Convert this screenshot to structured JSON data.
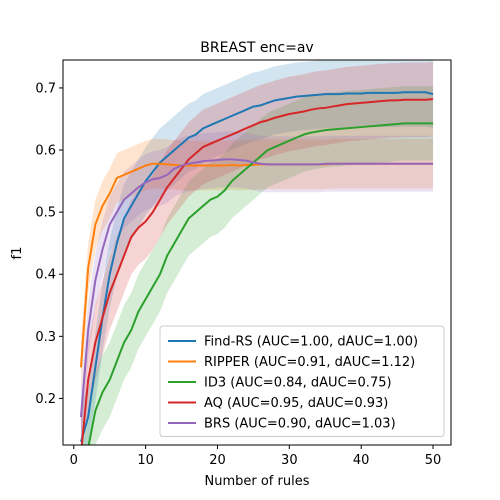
{
  "chart_data": {
    "type": "line",
    "title": "BREAST enc=av",
    "xlabel": "Number of rules",
    "ylabel": "f1",
    "xlim": [
      -1.5,
      52.5
    ],
    "ylim": [
      0.125,
      0.745
    ],
    "xticks": [
      0,
      10,
      20,
      30,
      40,
      50
    ],
    "yticks": [
      0.2,
      0.3,
      0.4,
      0.5,
      0.6,
      0.7
    ],
    "grid": false,
    "legend_position": "lower-right",
    "x": [
      1,
      2,
      3,
      4,
      5,
      6,
      7,
      8,
      9,
      10,
      11,
      12,
      13,
      14,
      15,
      16,
      17,
      18,
      19,
      20,
      21,
      22,
      23,
      24,
      25,
      26,
      27,
      28,
      29,
      30,
      31,
      32,
      33,
      34,
      35,
      36,
      37,
      38,
      39,
      40,
      41,
      42,
      43,
      44,
      45,
      46,
      47,
      48,
      49,
      50
    ],
    "series": [
      {
        "name": "Find-RS (AUC=1.00, dAUC=1.00)",
        "color": "#1f77b4",
        "values": [
          0.13,
          0.17,
          0.25,
          0.33,
          0.4,
          0.45,
          0.49,
          0.51,
          0.53,
          0.55,
          0.565,
          0.58,
          0.59,
          0.6,
          0.61,
          0.62,
          0.625,
          0.635,
          0.64,
          0.645,
          0.65,
          0.655,
          0.66,
          0.665,
          0.67,
          0.672,
          0.676,
          0.68,
          0.682,
          0.684,
          0.686,
          0.687,
          0.688,
          0.689,
          0.69,
          0.69,
          0.69,
          0.691,
          0.691,
          0.691,
          0.692,
          0.692,
          0.692,
          0.692,
          0.692,
          0.693,
          0.693,
          0.693,
          0.693,
          0.69
        ],
        "band": 0.055
      },
      {
        "name": "RIPPER (AUC=0.91, dAUC=1.12)",
        "color": "#ff7f0e",
        "values": [
          0.25,
          0.41,
          0.48,
          0.51,
          0.53,
          0.555,
          0.56,
          0.565,
          0.57,
          0.575,
          0.578,
          0.578,
          0.577,
          0.576,
          0.575,
          0.575,
          0.575,
          0.575,
          0.575,
          0.575,
          0.575,
          0.576,
          0.575,
          0.576,
          0.576,
          0.577,
          0.577,
          0.577,
          0.577,
          0.577,
          0.577,
          0.577,
          0.577,
          0.577,
          0.577,
          0.578,
          0.578,
          0.578,
          0.578,
          0.578,
          0.578,
          0.578,
          0.578,
          0.578,
          0.578,
          0.578,
          0.578,
          0.578,
          0.578,
          0.578
        ],
        "band": 0.04
      },
      {
        "name": "ID3 (AUC=0.84, dAUC=0.75)",
        "color": "#2ca02c",
        "values": [
          0.02,
          0.12,
          0.18,
          0.21,
          0.23,
          0.26,
          0.29,
          0.31,
          0.34,
          0.36,
          0.38,
          0.4,
          0.43,
          0.45,
          0.47,
          0.49,
          0.5,
          0.51,
          0.52,
          0.525,
          0.535,
          0.55,
          0.56,
          0.57,
          0.58,
          0.59,
          0.6,
          0.605,
          0.61,
          0.615,
          0.62,
          0.625,
          0.628,
          0.63,
          0.632,
          0.633,
          0.634,
          0.635,
          0.636,
          0.637,
          0.638,
          0.639,
          0.64,
          0.641,
          0.642,
          0.643,
          0.643,
          0.643,
          0.643,
          0.643
        ],
        "band": 0.06
      },
      {
        "name": "AQ (AUC=0.95, dAUC=0.93)",
        "color": "#d62728",
        "values": [
          0.11,
          0.23,
          0.29,
          0.33,
          0.37,
          0.4,
          0.43,
          0.46,
          0.475,
          0.485,
          0.5,
          0.52,
          0.54,
          0.555,
          0.57,
          0.585,
          0.595,
          0.605,
          0.61,
          0.615,
          0.62,
          0.625,
          0.63,
          0.635,
          0.64,
          0.645,
          0.648,
          0.652,
          0.655,
          0.658,
          0.66,
          0.662,
          0.665,
          0.667,
          0.668,
          0.67,
          0.672,
          0.674,
          0.675,
          0.676,
          0.677,
          0.678,
          0.679,
          0.68,
          0.68,
          0.681,
          0.681,
          0.681,
          0.681,
          0.682
        ],
        "band": 0.06
      },
      {
        "name": "BRS (AUC=0.90, dAUC=1.03)",
        "color": "#9467bd",
        "values": [
          0.17,
          0.31,
          0.39,
          0.44,
          0.48,
          0.5,
          0.52,
          0.53,
          0.54,
          0.548,
          0.553,
          0.555,
          0.56,
          0.57,
          0.575,
          0.578,
          0.58,
          0.582,
          0.583,
          0.584,
          0.585,
          0.585,
          0.584,
          0.583,
          0.58,
          0.578,
          0.577,
          0.577,
          0.577,
          0.577,
          0.577,
          0.577,
          0.577,
          0.577,
          0.578,
          0.578,
          0.578,
          0.578,
          0.578,
          0.578,
          0.578,
          0.578,
          0.578,
          0.578,
          0.578,
          0.578,
          0.578,
          0.578,
          0.578,
          0.578
        ],
        "band": 0.045
      }
    ]
  }
}
